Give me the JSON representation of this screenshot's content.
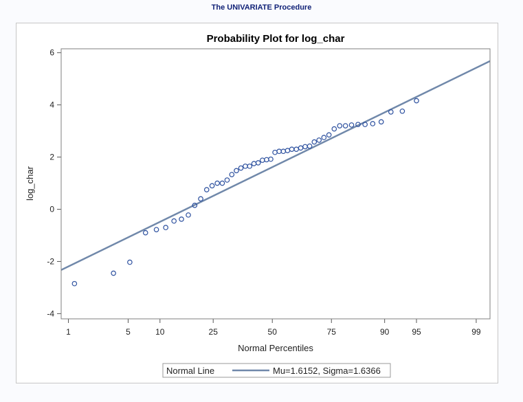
{
  "procedure_title": "The UNIVARIATE Procedure",
  "chart_data": {
    "type": "scatter",
    "title": "Probability Plot for log_char",
    "xlabel": "Normal Percentiles",
    "ylabel": "log_char",
    "x_scale": "normal-probability",
    "x_ticks": [
      1,
      5,
      10,
      25,
      50,
      75,
      90,
      95,
      99
    ],
    "y_ticks": [
      -4,
      -2,
      0,
      2,
      4,
      6
    ],
    "ylim": [
      -4.2,
      6.15
    ],
    "xlim_percent": [
      0.8,
      99.35
    ],
    "grid": false,
    "legend_placement": "bottom-center",
    "colors": {
      "points": "#2b4f9e",
      "normal_line": "#7088aa",
      "frame": "#7f7f7f",
      "title": "#000000"
    },
    "series": [
      {
        "name": "log_char",
        "points": [
          [
            1.2,
            -2.85
          ],
          [
            3.5,
            -2.45
          ],
          [
            5.2,
            -2.03
          ],
          [
            7.4,
            -0.9
          ],
          [
            9.3,
            -0.78
          ],
          [
            11.2,
            -0.7
          ],
          [
            13.1,
            -0.45
          ],
          [
            15.0,
            -0.38
          ],
          [
            16.9,
            -0.22
          ],
          [
            18.8,
            0.15
          ],
          [
            20.7,
            0.4
          ],
          [
            22.7,
            0.75
          ],
          [
            24.6,
            0.9
          ],
          [
            26.5,
            1.0
          ],
          [
            28.4,
            1.0
          ],
          [
            30.3,
            1.12
          ],
          [
            32.2,
            1.33
          ],
          [
            34.1,
            1.48
          ],
          [
            36.0,
            1.58
          ],
          [
            37.9,
            1.65
          ],
          [
            39.8,
            1.65
          ],
          [
            41.7,
            1.75
          ],
          [
            43.6,
            1.78
          ],
          [
            45.5,
            1.88
          ],
          [
            47.4,
            1.9
          ],
          [
            49.3,
            1.92
          ],
          [
            51.2,
            2.18
          ],
          [
            53.1,
            2.22
          ],
          [
            55.0,
            2.22
          ],
          [
            56.9,
            2.25
          ],
          [
            58.8,
            2.3
          ],
          [
            60.8,
            2.3
          ],
          [
            62.7,
            2.35
          ],
          [
            64.6,
            2.4
          ],
          [
            66.5,
            2.42
          ],
          [
            68.4,
            2.58
          ],
          [
            70.3,
            2.65
          ],
          [
            72.2,
            2.75
          ],
          [
            74.1,
            2.85
          ],
          [
            76.0,
            3.08
          ],
          [
            77.9,
            3.2
          ],
          [
            79.8,
            3.2
          ],
          [
            81.7,
            3.23
          ],
          [
            83.6,
            3.25
          ],
          [
            85.5,
            3.25
          ],
          [
            87.4,
            3.28
          ],
          [
            89.3,
            3.35
          ],
          [
            91.2,
            3.73
          ],
          [
            93.1,
            3.76
          ],
          [
            95.0,
            4.16
          ]
        ]
      }
    ],
    "normal_line": {
      "label": "Normal Line",
      "legend_text": "Mu=1.6152, Sigma=1.6366",
      "mu": 1.6152,
      "sigma": 1.6366
    }
  }
}
